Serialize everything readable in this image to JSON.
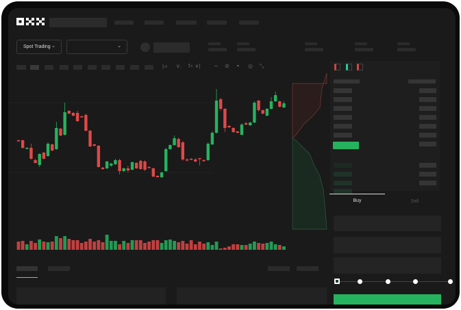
{
  "header": {
    "logo": "OKX"
  },
  "toolbar": {
    "market_selector": "Spot Trading",
    "chevron": "⌄",
    "icons": [
      "candle-type-icon",
      "indicator-icon",
      "formula-icon",
      "line-tool-icon",
      "ruler-icon",
      "camera-icon",
      "settings-icon",
      "fullscreen-icon"
    ]
  },
  "order_book": {
    "view_icons": [
      "both-sides-icon",
      "bids-only-icon",
      "asks-only-icon"
    ]
  },
  "trade": {
    "buy_tab": "Buy",
    "sell_tab": "Sell",
    "slider_value": 0,
    "slider_marks": [
      0,
      25,
      50,
      75,
      100
    ]
  },
  "colors": {
    "up": "#26b35f",
    "down": "#e04848",
    "background": "#1a1a1a",
    "accent": "#26b35f"
  },
  "chart_data": {
    "type": "candlestick",
    "candles": [
      [
        97,
        96,
        98,
        95
      ],
      [
        97,
        86,
        98,
        85
      ],
      [
        85,
        86,
        87,
        84
      ],
      [
        86,
        70,
        92,
        69
      ],
      [
        68,
        64,
        70,
        63
      ],
      [
        61,
        77,
        78,
        58
      ],
      [
        79,
        70,
        80,
        69
      ],
      [
        74,
        92,
        94,
        73
      ],
      [
        91,
        82,
        92,
        81
      ],
      [
        84,
        115,
        124,
        83
      ],
      [
        114,
        104,
        115,
        103
      ],
      [
        105,
        138,
        152,
        104
      ],
      [
        140,
        136,
        141,
        135
      ],
      [
        137,
        133,
        138,
        132
      ],
      [
        137,
        125,
        140,
        124
      ],
      [
        132,
        131,
        133,
        130
      ],
      [
        134,
        111,
        136,
        110
      ],
      [
        111,
        88,
        112,
        87
      ],
      [
        91,
        89,
        92,
        88
      ],
      [
        89,
        58,
        90,
        57
      ],
      [
        57,
        55,
        58,
        54
      ],
      [
        56,
        66,
        67,
        55
      ],
      [
        60,
        63,
        64,
        58
      ],
      [
        62,
        68,
        70,
        61
      ],
      [
        68,
        52,
        70,
        47
      ],
      [
        52,
        56,
        57,
        51
      ],
      [
        56,
        53,
        60,
        50
      ],
      [
        54,
        65,
        66,
        53
      ],
      [
        64,
        56,
        65,
        55
      ],
      [
        67,
        55,
        68,
        54
      ],
      [
        66,
        54,
        68,
        52
      ],
      [
        58,
        57,
        59,
        56
      ],
      [
        56,
        44,
        57,
        43
      ],
      [
        45,
        43,
        46,
        43
      ],
      [
        43,
        50,
        51,
        42
      ],
      [
        52,
        84,
        86,
        51
      ],
      [
        84,
        90,
        91,
        83
      ],
      [
        90,
        100,
        104,
        89
      ],
      [
        99,
        87,
        101,
        86
      ],
      [
        94,
        69,
        96,
        67
      ],
      [
        69,
        68,
        71,
        66
      ],
      [
        70,
        69,
        71,
        68
      ],
      [
        69,
        66,
        71,
        65
      ],
      [
        71,
        70,
        71,
        60
      ],
      [
        68,
        67,
        69,
        66
      ],
      [
        68,
        92,
        94,
        67
      ],
      [
        91,
        108,
        110,
        90
      ],
      [
        108,
        155,
        172,
        107
      ],
      [
        157,
        143,
        159,
        140
      ],
      [
        143,
        115,
        144,
        109
      ],
      [
        118,
        116,
        119,
        115
      ],
      [
        115,
        109,
        116,
        108
      ],
      [
        110,
        108,
        111,
        107
      ],
      [
        105,
        120,
        122,
        104
      ],
      [
        122,
        120,
        124,
        119
      ],
      [
        119,
        123,
        124,
        118
      ],
      [
        123,
        152,
        154,
        122
      ],
      [
        155,
        141,
        156,
        139
      ],
      [
        141,
        136,
        142,
        135
      ],
      [
        133,
        143,
        144,
        132
      ],
      [
        143,
        154,
        160,
        142
      ],
      [
        154,
        163,
        168,
        153
      ],
      [
        154,
        146,
        155,
        145
      ],
      [
        145,
        151,
        154,
        144
      ]
    ],
    "volume": [
      12,
      13,
      8,
      13,
      10,
      15,
      12,
      11,
      12,
      20,
      17,
      20,
      16,
      14,
      14,
      10,
      12,
      16,
      12,
      14,
      11,
      22,
      13,
      13,
      8,
      13,
      10,
      14,
      14,
      14,
      10,
      12,
      14,
      14,
      10,
      14,
      15,
      13,
      11,
      13,
      9,
      14,
      8,
      12,
      9,
      11,
      7,
      12,
      2,
      3,
      5,
      8,
      8,
      7,
      7,
      9,
      12,
      10,
      9,
      10,
      12,
      8,
      7,
      5
    ]
  }
}
